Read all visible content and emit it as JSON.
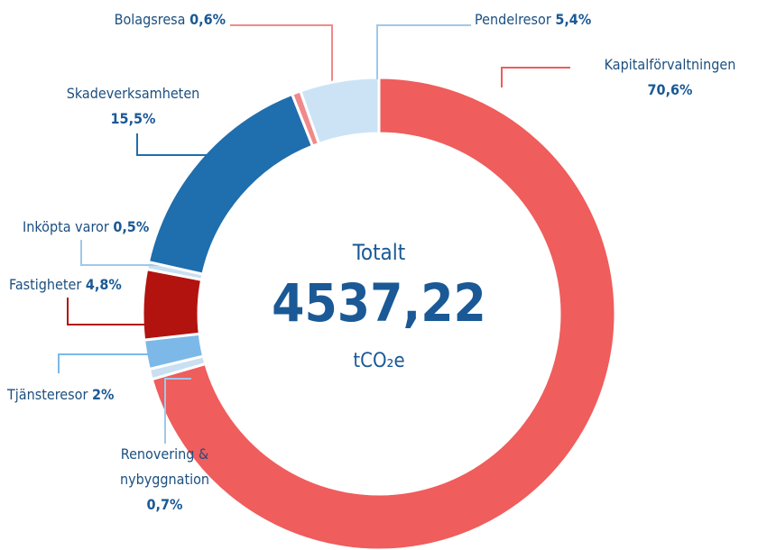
{
  "chart_data": {
    "type": "donut",
    "categories": [
      "Kapitalförvaltningen",
      "Renovering & nybyggnation",
      "Tjänsteresor",
      "Fastigheter",
      "Inköpta varor",
      "Skadeverksamheten",
      "Bolagsresa",
      "Pendelresor"
    ],
    "values": [
      70.6,
      0.7,
      2,
      4.8,
      0.5,
      15.5,
      0.6,
      5.4
    ],
    "value_labels": [
      "70,6%",
      "0,7%",
      "2%",
      "4,8%",
      "0,5%",
      "15,5%",
      "0,6%",
      "5,4%"
    ],
    "colors": [
      "#ef5d5c",
      "#c9e0f3",
      "#7db9e8",
      "#b3130f",
      "#c9e0f3",
      "#1f6ead",
      "#f08a8a",
      "#cce3f6"
    ],
    "center_title": "Totalt",
    "total": "4537,22",
    "unit": "tCO₂e"
  }
}
